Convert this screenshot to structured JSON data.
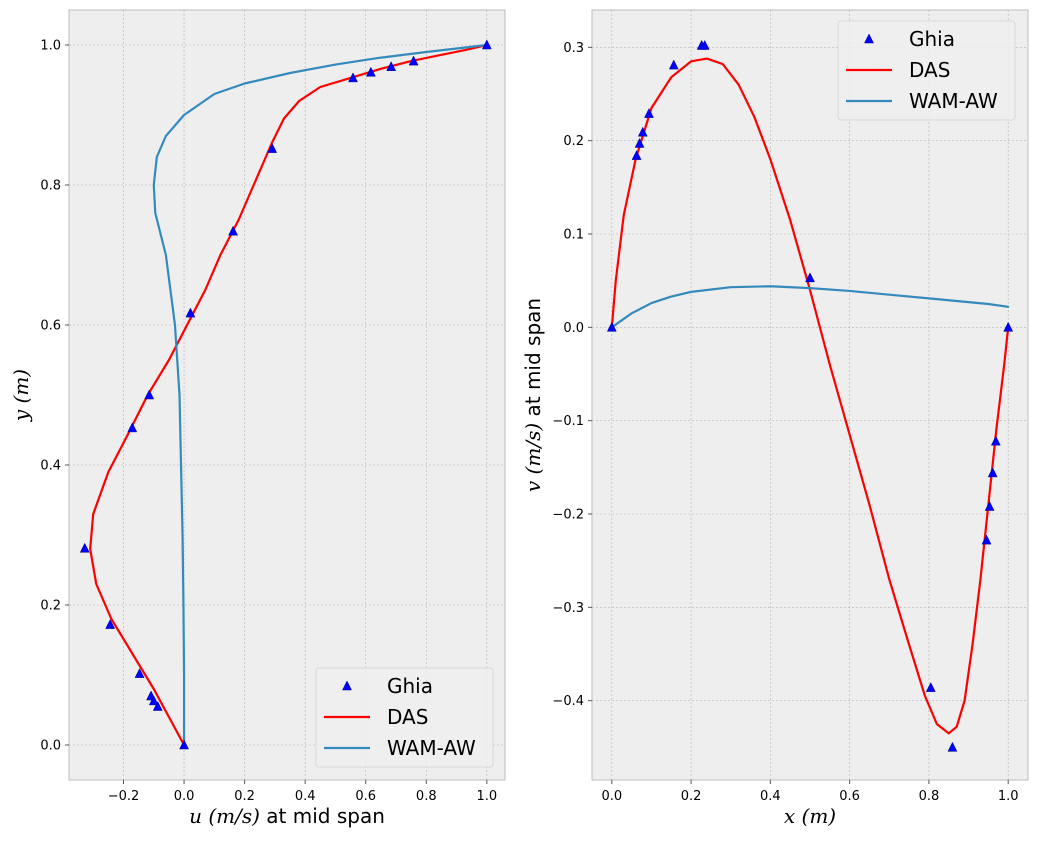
{
  "chart_data": [
    {
      "type": "line",
      "xlabel": "u (m/s) at mid span",
      "xlabel_math": "u (m/s)",
      "xlabel_text": " at mid span",
      "ylabel": "y (m)",
      "ylabel_math": "y (m)",
      "xlim": [
        -0.38,
        1.06
      ],
      "ylim": [
        -0.05,
        1.05
      ],
      "xticks": [
        -0.2,
        0.0,
        0.2,
        0.4,
        0.6,
        0.8,
        1.0
      ],
      "xtick_labels": [
        "−0.2",
        "0.0",
        "0.2",
        "0.4",
        "0.6",
        "0.8",
        "1.0"
      ],
      "yticks": [
        0.0,
        0.2,
        0.4,
        0.6,
        0.8,
        1.0
      ],
      "ytick_labels": [
        "0.0",
        "0.2",
        "0.4",
        "0.6",
        "0.8",
        "1.0"
      ],
      "grid": true,
      "legend_position": "lower-right",
      "series": [
        {
          "name": "Ghia",
          "kind": "marker",
          "color": "#0000ff",
          "points": [
            [
              1.0,
              1.0
            ],
            [
              0.758,
              0.977
            ],
            [
              0.684,
              0.969
            ],
            [
              0.617,
              0.961
            ],
            [
              0.558,
              0.953
            ],
            [
              0.291,
              0.852
            ],
            [
              0.162,
              0.734
            ],
            [
              0.021,
              0.617
            ],
            [
              -0.115,
              0.5
            ],
            [
              -0.171,
              0.453
            ],
            [
              -0.328,
              0.281
            ],
            [
              -0.244,
              0.172
            ],
            [
              -0.147,
              0.102
            ],
            [
              -0.109,
              0.07
            ],
            [
              -0.1,
              0.063
            ],
            [
              -0.087,
              0.055
            ],
            [
              0.0,
              0.0
            ]
          ]
        },
        {
          "name": "DAS",
          "kind": "line",
          "color": "#ff0000",
          "points": [
            [
              0.0,
              0.0
            ],
            [
              -0.05,
              0.04
            ],
            [
              -0.1,
              0.08
            ],
            [
              -0.17,
              0.13
            ],
            [
              -0.24,
              0.18
            ],
            [
              -0.29,
              0.23
            ],
            [
              -0.31,
              0.28
            ],
            [
              -0.3,
              0.33
            ],
            [
              -0.25,
              0.39
            ],
            [
              -0.19,
              0.44
            ],
            [
              -0.12,
              0.5
            ],
            [
              -0.05,
              0.55
            ],
            [
              0.01,
              0.6
            ],
            [
              0.07,
              0.65
            ],
            [
              0.12,
              0.7
            ],
            [
              0.18,
              0.75
            ],
            [
              0.22,
              0.79
            ],
            [
              0.26,
              0.83
            ],
            [
              0.29,
              0.86
            ],
            [
              0.33,
              0.895
            ],
            [
              0.38,
              0.92
            ],
            [
              0.45,
              0.94
            ],
            [
              0.55,
              0.953
            ],
            [
              0.65,
              0.966
            ],
            [
              0.75,
              0.977
            ],
            [
              0.85,
              0.986
            ],
            [
              0.93,
              0.993
            ],
            [
              1.0,
              1.0
            ]
          ]
        },
        {
          "name": "WAM-AW",
          "kind": "line",
          "color": "#348abd",
          "points": [
            [
              0.0,
              0.0
            ],
            [
              0.0,
              0.1
            ],
            [
              -0.002,
              0.2
            ],
            [
              -0.005,
              0.3
            ],
            [
              -0.01,
              0.4
            ],
            [
              -0.015,
              0.5
            ],
            [
              -0.03,
              0.6
            ],
            [
              -0.06,
              0.7
            ],
            [
              -0.095,
              0.76
            ],
            [
              -0.1,
              0.8
            ],
            [
              -0.09,
              0.84
            ],
            [
              -0.06,
              0.87
            ],
            [
              0.0,
              0.9
            ],
            [
              0.1,
              0.93
            ],
            [
              0.2,
              0.945
            ],
            [
              0.35,
              0.96
            ],
            [
              0.5,
              0.972
            ],
            [
              0.65,
              0.982
            ],
            [
              0.8,
              0.99
            ],
            [
              0.9,
              0.995
            ],
            [
              1.0,
              1.0
            ]
          ]
        }
      ]
    },
    {
      "type": "line",
      "xlabel": "x (m)",
      "xlabel_math": "x (m)",
      "ylabel": "v (m/s) at mid span",
      "ylabel_math": "v (m/s)",
      "ylabel_text": " at mid span",
      "xlim": [
        -0.05,
        1.05
      ],
      "ylim": [
        -0.485,
        0.34
      ],
      "xticks": [
        0.0,
        0.2,
        0.4,
        0.6,
        0.8,
        1.0
      ],
      "xtick_labels": [
        "0.0",
        "0.2",
        "0.4",
        "0.6",
        "0.8",
        "1.0"
      ],
      "yticks": [
        -0.4,
        -0.3,
        -0.2,
        -0.1,
        0.0,
        0.1,
        0.2,
        0.3
      ],
      "ytick_labels": [
        "−0.4",
        "−0.3",
        "−0.2",
        "−0.1",
        "0.0",
        "0.1",
        "0.2",
        "0.3"
      ],
      "grid": true,
      "legend_position": "upper-right",
      "series": [
        {
          "name": "Ghia",
          "kind": "marker",
          "color": "#0000ff",
          "points": [
            [
              0.0,
              0.0
            ],
            [
              0.0625,
              0.184
            ],
            [
              0.07,
              0.197
            ],
            [
              0.0781,
              0.209
            ],
            [
              0.0938,
              0.229
            ],
            [
              0.1563,
              0.281
            ],
            [
              0.2266,
              0.302
            ],
            [
              0.2344,
              0.302
            ],
            [
              0.5,
              0.053
            ],
            [
              0.8047,
              -0.386
            ],
            [
              0.8594,
              -0.45
            ],
            [
              0.9453,
              -0.228
            ],
            [
              0.9531,
              -0.192
            ],
            [
              0.9609,
              -0.156
            ],
            [
              0.9688,
              -0.122
            ],
            [
              1.0,
              0.0
            ]
          ]
        },
        {
          "name": "DAS",
          "kind": "line",
          "color": "#ff0000",
          "points": [
            [
              0.0,
              0.0
            ],
            [
              0.01,
              0.05
            ],
            [
              0.03,
              0.12
            ],
            [
              0.06,
              0.18
            ],
            [
              0.1,
              0.235
            ],
            [
              0.15,
              0.268
            ],
            [
              0.2,
              0.285
            ],
            [
              0.24,
              0.288
            ],
            [
              0.28,
              0.282
            ],
            [
              0.32,
              0.26
            ],
            [
              0.36,
              0.225
            ],
            [
              0.4,
              0.18
            ],
            [
              0.45,
              0.115
            ],
            [
              0.5,
              0.04
            ],
            [
              0.55,
              -0.04
            ],
            [
              0.6,
              -0.115
            ],
            [
              0.65,
              -0.19
            ],
            [
              0.7,
              -0.27
            ],
            [
              0.75,
              -0.34
            ],
            [
              0.79,
              -0.395
            ],
            [
              0.82,
              -0.425
            ],
            [
              0.85,
              -0.435
            ],
            [
              0.87,
              -0.428
            ],
            [
              0.89,
              -0.4
            ],
            [
              0.91,
              -0.34
            ],
            [
              0.93,
              -0.27
            ],
            [
              0.95,
              -0.19
            ],
            [
              0.97,
              -0.11
            ],
            [
              0.99,
              -0.04
            ],
            [
              1.0,
              0.0
            ]
          ]
        },
        {
          "name": "WAM-AW",
          "kind": "line",
          "color": "#348abd",
          "points": [
            [
              0.0,
              0.0
            ],
            [
              0.05,
              0.015
            ],
            [
              0.1,
              0.026
            ],
            [
              0.15,
              0.033
            ],
            [
              0.2,
              0.038
            ],
            [
              0.3,
              0.043
            ],
            [
              0.4,
              0.044
            ],
            [
              0.5,
              0.042
            ],
            [
              0.6,
              0.039
            ],
            [
              0.7,
              0.035
            ],
            [
              0.8,
              0.031
            ],
            [
              0.9,
              0.027
            ],
            [
              0.95,
              0.025
            ],
            [
              1.0,
              0.022
            ]
          ]
        }
      ]
    }
  ]
}
